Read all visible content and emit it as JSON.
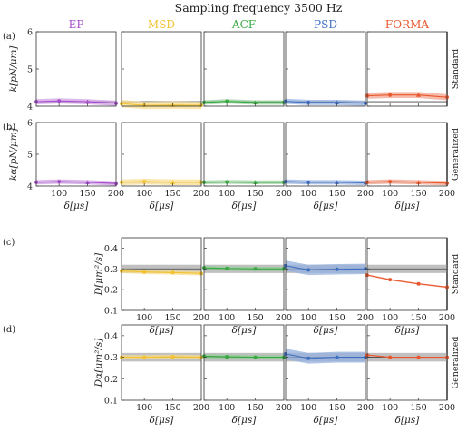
{
  "title": "Sampling frequency 3500 Hz",
  "row_labels": [
    "(a)",
    "(b)",
    "(c)",
    "(d)"
  ],
  "side_labels": [
    "Standard",
    "Generalized",
    "Standard",
    "Generalized"
  ],
  "x_label": "δ[μs]",
  "colors": {
    "EP": "#a64dcc",
    "MSD": "#f2c230",
    "ACF": "#3aa843",
    "PSD": "#3d6fc2",
    "FORMA": "#e8582e",
    "band": "#b5b5b5"
  },
  "chart_data": [
    {
      "type": "scatter",
      "ylabel": "k[pN/μm]",
      "ylim": [
        4,
        6
      ],
      "yticks": [
        4,
        5,
        6
      ],
      "xlim": [
        60,
        200
      ],
      "xticks": [
        100,
        150,
        200
      ],
      "reference": 4.12,
      "series": [
        {
          "name": "EP",
          "x": [
            60,
            100,
            150,
            200
          ],
          "y": [
            4.12,
            4.14,
            4.12,
            4.08
          ],
          "band": 0.07
        },
        {
          "name": "MSD",
          "x": [
            60,
            100,
            150,
            200
          ],
          "y": [
            4.07,
            4.02,
            4.03,
            4.02
          ],
          "band": 0.1
        },
        {
          "name": "ACF",
          "x": [
            60,
            100,
            150,
            200
          ],
          "y": [
            4.1,
            4.13,
            4.1,
            4.1
          ],
          "band": 0.06
        },
        {
          "name": "PSD",
          "x": [
            60,
            100,
            150,
            200
          ],
          "y": [
            4.13,
            4.1,
            4.1,
            4.08
          ],
          "band": 0.07
        },
        {
          "name": "FORMA",
          "x": [
            60,
            100,
            150,
            200
          ],
          "y": [
            4.28,
            4.3,
            4.3,
            4.24
          ],
          "band": 0.08
        }
      ]
    },
    {
      "type": "scatter",
      "ylabel": "kα[pN/μm]",
      "ylim": [
        4,
        6
      ],
      "yticks": [
        4,
        5,
        6
      ],
      "xlim": [
        60,
        200
      ],
      "xticks": [
        100,
        150,
        200
      ],
      "xtick_labels": [
        "100",
        "150",
        "200"
      ],
      "reference": 4.12,
      "series": [
        {
          "name": "EP",
          "x": [
            60,
            100,
            150,
            200
          ],
          "y": [
            4.12,
            4.14,
            4.12,
            4.08
          ],
          "band": 0.07
        },
        {
          "name": "MSD",
          "x": [
            60,
            100,
            150,
            200
          ],
          "y": [
            4.12,
            4.14,
            4.12,
            4.12
          ],
          "band": 0.09
        },
        {
          "name": "ACF",
          "x": [
            60,
            100,
            150,
            200
          ],
          "y": [
            4.12,
            4.13,
            4.12,
            4.12
          ],
          "band": 0.06
        },
        {
          "name": "PSD",
          "x": [
            60,
            100,
            150,
            200
          ],
          "y": [
            4.14,
            4.12,
            4.12,
            4.1
          ],
          "band": 0.07
        },
        {
          "name": "FORMA",
          "x": [
            60,
            100,
            150,
            200
          ],
          "y": [
            4.12,
            4.14,
            4.12,
            4.09
          ],
          "band": 0.07
        }
      ]
    },
    {
      "type": "scatter",
      "ylabel": "D[μm²/s]",
      "ylim": [
        0.1,
        0.45
      ],
      "yticks": [
        0.1,
        0.2,
        0.3,
        0.4
      ],
      "xlim": [
        60,
        200
      ],
      "xticks": [
        100,
        150,
        200
      ],
      "reference": 0.3,
      "reference_band": [
        0.28,
        0.32
      ],
      "series": [
        {
          "name": "MSD",
          "x": [
            60,
            100,
            150,
            200
          ],
          "y": [
            0.29,
            0.285,
            0.282,
            0.278
          ],
          "band": 0.01
        },
        {
          "name": "ACF",
          "x": [
            60,
            100,
            150,
            200
          ],
          "y": [
            0.305,
            0.302,
            0.3,
            0.3
          ],
          "band": 0.01
        },
        {
          "name": "PSD",
          "x": [
            60,
            100,
            150,
            200
          ],
          "y": [
            0.315,
            0.295,
            0.298,
            0.3
          ],
          "band": 0.025
        },
        {
          "name": "FORMA",
          "x": [
            60,
            100,
            150,
            200
          ],
          "y": [
            0.27,
            0.248,
            0.228,
            0.212
          ],
          "band": 0.004
        }
      ]
    },
    {
      "type": "scatter",
      "ylabel": "Dα[μm²/s]",
      "ylim": [
        0.1,
        0.45
      ],
      "yticks": [
        0.1,
        0.2,
        0.3,
        0.4
      ],
      "xlim": [
        60,
        200
      ],
      "xticks": [
        100,
        150,
        200
      ],
      "reference": 0.3,
      "reference_band": [
        0.28,
        0.32
      ],
      "series": [
        {
          "name": "MSD",
          "x": [
            60,
            100,
            150,
            200
          ],
          "y": [
            0.3,
            0.3,
            0.302,
            0.3
          ],
          "band": 0.01
        },
        {
          "name": "ACF",
          "x": [
            60,
            100,
            150,
            200
          ],
          "y": [
            0.305,
            0.302,
            0.3,
            0.3
          ],
          "band": 0.01
        },
        {
          "name": "PSD",
          "x": [
            60,
            100,
            150,
            200
          ],
          "y": [
            0.315,
            0.295,
            0.3,
            0.3
          ],
          "band": 0.025
        },
        {
          "name": "FORMA",
          "x": [
            60,
            100,
            150,
            200
          ],
          "y": [
            0.31,
            0.3,
            0.3,
            0.3
          ],
          "band": 0.003
        }
      ]
    }
  ]
}
